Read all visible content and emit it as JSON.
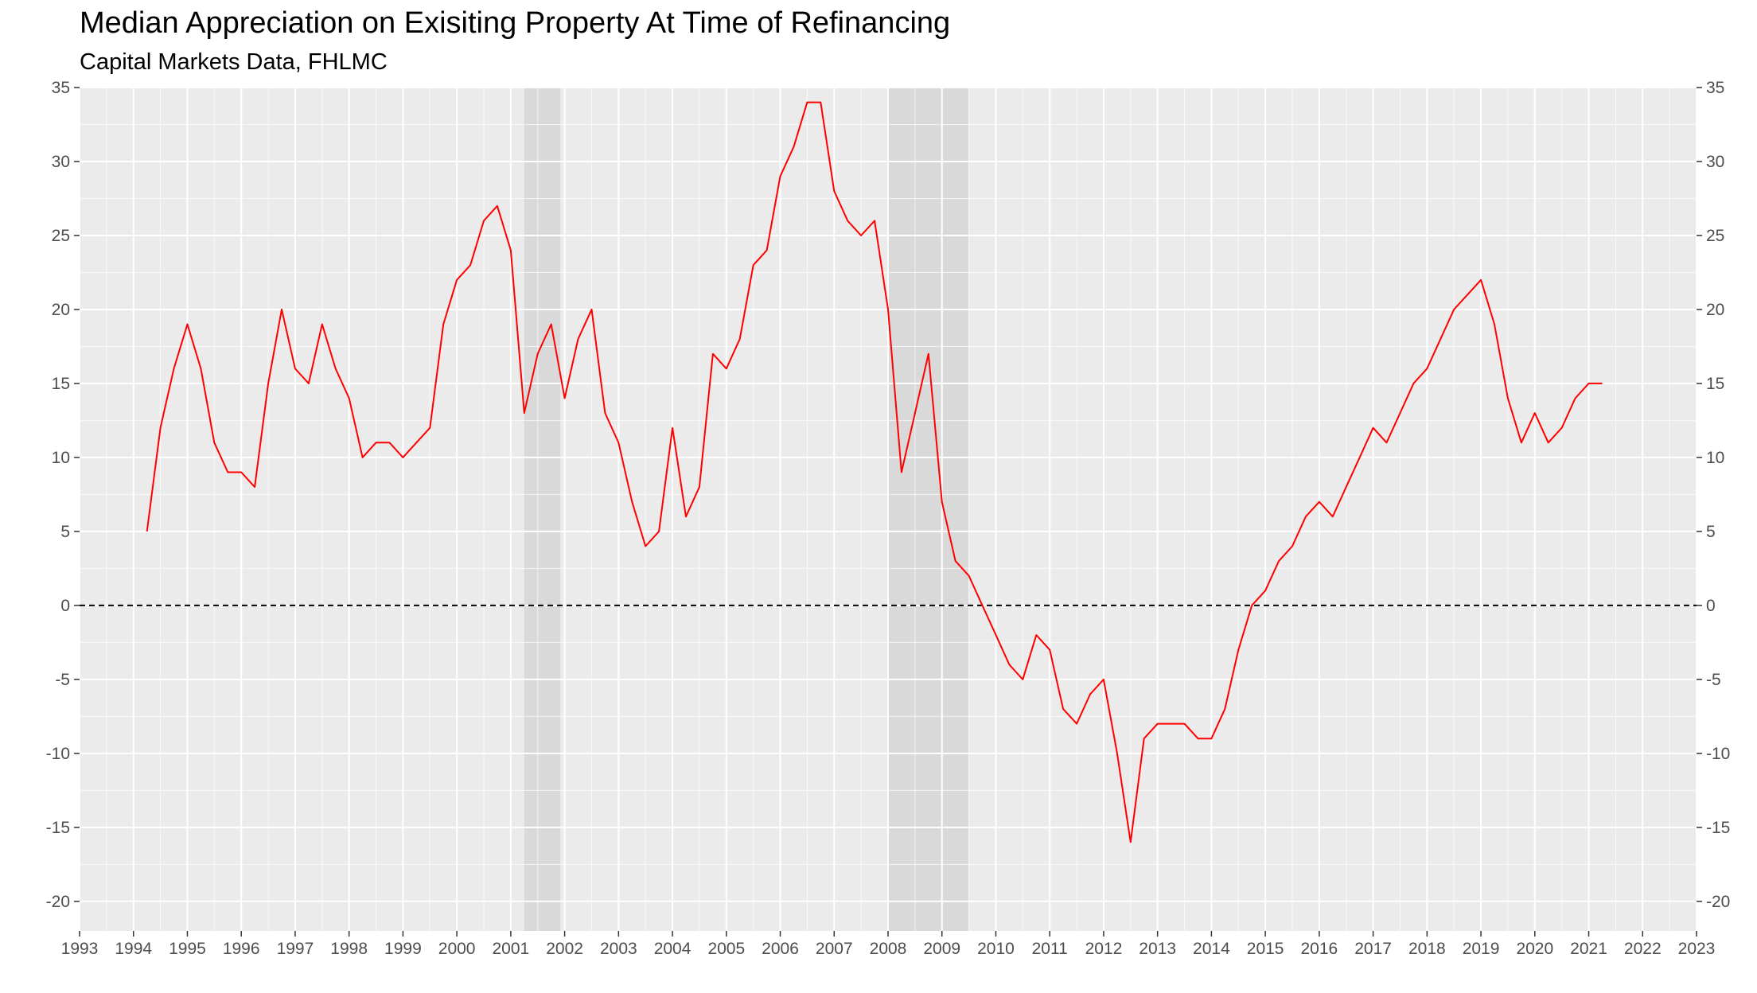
{
  "chart_data": {
    "type": "line",
    "title": "Median Appreciation on Exisiting Property At Time of Refinancing",
    "subtitle": "Capital Markets Data, FHLMC",
    "xlim": [
      1993,
      2023
    ],
    "ylim": [
      -22,
      35
    ],
    "x_ticks": [
      1993,
      1994,
      1995,
      1996,
      1997,
      1998,
      1999,
      2000,
      2001,
      2002,
      2003,
      2004,
      2005,
      2006,
      2007,
      2008,
      2009,
      2010,
      2011,
      2012,
      2013,
      2014,
      2015,
      2016,
      2017,
      2018,
      2019,
      2020,
      2021,
      2022,
      2023
    ],
    "y_ticks": [
      -20,
      -15,
      -10,
      -5,
      0,
      5,
      10,
      15,
      20,
      25,
      30,
      35
    ],
    "grid": true,
    "reference_line": {
      "y": 0,
      "style": "dashed",
      "color": "#000000"
    },
    "recessions": [
      {
        "start": 2001.25,
        "end": 2001.92
      },
      {
        "start": 2008.0,
        "end": 2009.5
      }
    ],
    "colors": {
      "line": "#ff0000",
      "panel": "#ebebeb",
      "grid": "#ffffff",
      "recession": "#d9d9d9"
    },
    "series": [
      {
        "x": [
          1994.25,
          1994.5,
          1994.75,
          1995.0,
          1995.25,
          1995.5,
          1995.75,
          1996.0,
          1996.25,
          1996.5,
          1996.75,
          1997.0,
          1997.25,
          1997.5,
          1997.75,
          1998.0,
          1998.25,
          1998.5,
          1998.75,
          1999.0,
          1999.25,
          1999.5,
          1999.75,
          2000.0,
          2000.25,
          2000.5,
          2000.75,
          2001.0,
          2001.25,
          2001.5,
          2001.75,
          2002.0,
          2002.25,
          2002.5,
          2002.75,
          2003.0,
          2003.25,
          2003.5,
          2003.75,
          2004.0,
          2004.25,
          2004.5,
          2004.75,
          2005.0,
          2005.25,
          2005.5,
          2005.75,
          2006.0,
          2006.25,
          2006.5,
          2006.75,
          2007.0,
          2007.25,
          2007.5,
          2007.75,
          2008.0,
          2008.25,
          2008.5,
          2008.75,
          2009.0,
          2009.25,
          2009.5,
          2009.75,
          2010.0,
          2010.25,
          2010.5,
          2010.75,
          2011.0,
          2011.25,
          2011.5,
          2011.75,
          2012.0,
          2012.25,
          2012.5,
          2012.75,
          2013.0,
          2013.25,
          2013.5,
          2013.75,
          2014.0,
          2014.25,
          2014.5,
          2014.75,
          2015.0,
          2015.25,
          2015.5,
          2015.75,
          2016.0,
          2016.25,
          2016.5,
          2016.75,
          2017.0,
          2017.25,
          2017.5,
          2017.75,
          2018.0,
          2018.25,
          2018.5,
          2018.75,
          2019.0,
          2019.25,
          2019.5,
          2019.75,
          2020.0,
          2020.25,
          2020.5,
          2020.75,
          2021.0,
          2021.25
        ],
        "values": [
          5,
          12,
          16,
          19,
          16,
          11,
          9,
          9,
          8,
          15,
          20,
          16,
          15,
          19,
          16,
          14,
          10,
          11,
          11,
          10,
          11,
          12,
          19,
          22,
          23,
          26,
          27,
          24,
          13,
          17,
          19,
          14,
          18,
          20,
          13,
          11,
          7,
          4,
          5,
          12,
          6,
          8,
          17,
          16,
          18,
          23,
          24,
          29,
          31,
          34,
          34,
          28,
          26,
          25,
          26,
          20,
          9,
          13,
          17,
          7,
          3,
          2,
          0,
          -2,
          -4,
          -5,
          -2,
          -3,
          -7,
          -8,
          -6,
          -5,
          -10,
          -16,
          -9,
          -8,
          -8,
          -8,
          -9,
          -9,
          -7,
          -3,
          0,
          1,
          3,
          4,
          6,
          7,
          6,
          8,
          10,
          12,
          11,
          13,
          15,
          16,
          18,
          20,
          21,
          22,
          19,
          14,
          11,
          13,
          11,
          12,
          14,
          15,
          15
        ]
      }
    ]
  }
}
